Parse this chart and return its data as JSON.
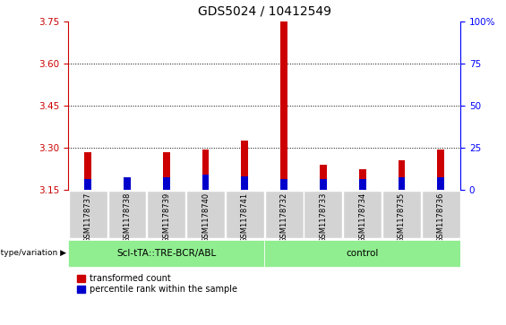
{
  "title": "GDS5024 / 10412549",
  "samples": [
    "GSM1178737",
    "GSM1178738",
    "GSM1178739",
    "GSM1178740",
    "GSM1178741",
    "GSM1178732",
    "GSM1178733",
    "GSM1178734",
    "GSM1178735",
    "GSM1178736"
  ],
  "red_values": [
    3.285,
    3.175,
    3.285,
    3.295,
    3.325,
    3.75,
    3.24,
    3.225,
    3.255,
    3.295
  ],
  "blue_values": [
    3.19,
    3.195,
    3.195,
    3.205,
    3.2,
    3.19,
    3.19,
    3.19,
    3.195,
    3.195
  ],
  "baseline": 3.15,
  "ylim_left": [
    3.15,
    3.75
  ],
  "yticks_left": [
    3.15,
    3.3,
    3.45,
    3.6,
    3.75
  ],
  "yticks_right": [
    0,
    25,
    50,
    75,
    100
  ],
  "ytick_right_labels": [
    "0",
    "25",
    "50",
    "75",
    "100%"
  ],
  "group1_label": "Scl-tTA::TRE-BCR/ABL",
  "group2_label": "control",
  "group1_color": "#90EE90",
  "group2_color": "#90EE90",
  "group1_count": 5,
  "group2_count": 5,
  "red_color": "#CC0000",
  "blue_color": "#0000CC",
  "legend_red": "transformed count",
  "legend_blue": "percentile rank within the sample",
  "bg_plot": "#FFFFFF",
  "bg_sample": "#D3D3D3",
  "genotype_label": "genotype/variation"
}
